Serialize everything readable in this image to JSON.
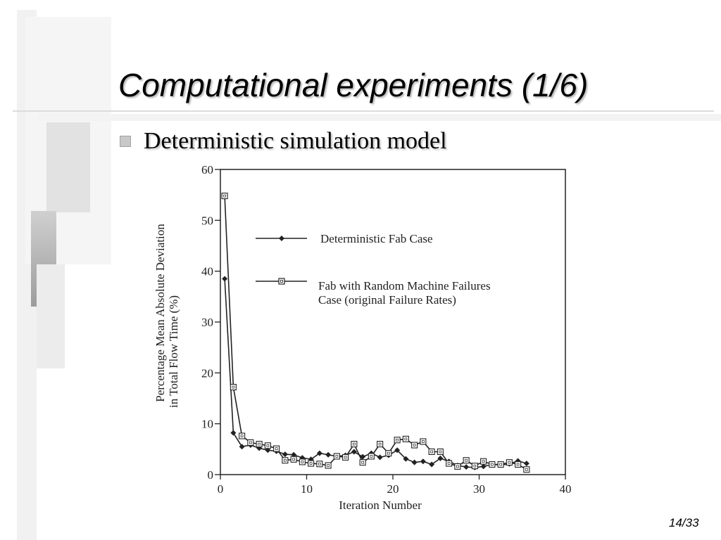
{
  "slide": {
    "title": "Computational experiments (1/6)",
    "bullet": "Deterministic simulation model",
    "slide_number": "14/33"
  },
  "chart_data": {
    "type": "line",
    "xlabel": "Iteration Number",
    "ylabel": "Percentage Mean Absolute Deviation in Total Flow Time (%)",
    "ylabel_line1": "Percentage Mean Absolute Deviation",
    "ylabel_line2": "in Total Flow Time (%)",
    "xlim": [
      0,
      40
    ],
    "ylim": [
      0,
      60
    ],
    "xticks": [
      0,
      10,
      20,
      30,
      40
    ],
    "yticks": [
      0,
      10,
      20,
      30,
      40,
      50,
      60
    ],
    "grid": false,
    "legend_position": "top-right",
    "x": [
      0.5,
      1.5,
      2.5,
      3.5,
      4.5,
      5.5,
      6.5,
      7.5,
      8.5,
      9.5,
      10.5,
      11.5,
      12.5,
      13.5,
      14.5,
      15.5,
      16.5,
      17.5,
      18.5,
      19.5,
      20.5,
      21.5,
      22.5,
      23.5,
      24.5,
      25.5,
      26.5,
      27.5,
      28.5,
      29.5,
      30.5,
      31.5,
      32.5,
      33.5,
      34.5,
      35.5
    ],
    "series": [
      {
        "name": "Deterministic Fab Case",
        "marker": "filled-diamond",
        "color": "#222222",
        "values": [
          38.5,
          8.2,
          5.5,
          5.8,
          5.2,
          4.8,
          4.6,
          4.0,
          3.9,
          3.3,
          3.0,
          4.2,
          3.9,
          3.6,
          3.8,
          4.5,
          3.5,
          4.2,
          3.4,
          3.8,
          4.8,
          3.1,
          2.4,
          2.6,
          2.0,
          3.2,
          2.6,
          1.8,
          1.5,
          1.4,
          1.6,
          2.0,
          1.9,
          2.1,
          2.7,
          2.2
        ]
      },
      {
        "name": "Fab with Random Machine Failures Case (original Failure Rates)",
        "label_line1": "Fab with Random Machine Failures",
        "label_line2": "Case (original Failure Rates)",
        "marker": "open-square",
        "color": "#222222",
        "values": [
          54.8,
          17.2,
          7.6,
          6.3,
          6.0,
          5.7,
          5.1,
          2.8,
          3.0,
          2.5,
          2.2,
          2.1,
          1.8,
          3.6,
          3.4,
          6.0,
          2.4,
          3.6,
          6.0,
          4.2,
          6.8,
          7.0,
          5.8,
          6.5,
          4.5,
          4.5,
          2.2,
          1.6,
          2.8,
          1.7,
          2.6,
          2.0,
          2.0,
          2.4,
          2.0,
          1.0
        ]
      }
    ]
  }
}
